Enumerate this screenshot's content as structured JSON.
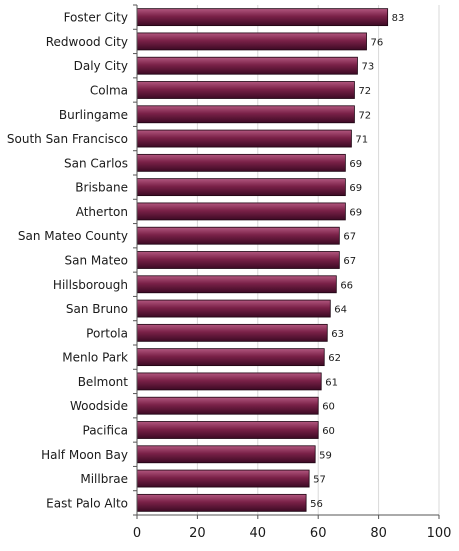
{
  "chart_data": {
    "type": "bar",
    "orientation": "horizontal",
    "categories": [
      "Foster City",
      "Redwood City",
      "Daly City",
      "Colma",
      "Burlingame",
      "South San Francisco",
      "San Carlos",
      "Brisbane",
      "Atherton",
      "San Mateo County",
      "San Mateo",
      "Hillsborough",
      "San Bruno",
      "Portola",
      "Menlo Park",
      "Belmont",
      "Woodside",
      "Pacifica",
      "Half Moon Bay",
      "Millbrae",
      "East Palo Alto"
    ],
    "values": [
      83,
      76,
      73,
      72,
      72,
      71,
      69,
      69,
      69,
      67,
      67,
      66,
      64,
      63,
      62,
      61,
      60,
      60,
      59,
      57,
      56
    ],
    "data_labels": [
      "83",
      "76",
      "73",
      "72",
      "72",
      "71",
      "69",
      "69",
      "69",
      "67",
      "67",
      "66",
      "64",
      "63",
      "62",
      "61",
      "60",
      "60",
      "59",
      "57",
      "56"
    ],
    "title": "",
    "xlabel": "",
    "ylabel": "",
    "xlim": [
      0,
      100
    ],
    "x_ticks": [
      0,
      20,
      40,
      60,
      80,
      100
    ],
    "x_tick_labels": [
      "0",
      "20",
      "40",
      "60",
      "80",
      "100"
    ],
    "grid": true,
    "legend": "none",
    "colors": {
      "bar_top": "#b2577f",
      "bar_mid": "#7a2148",
      "bar_bottom": "#3c0a24",
      "bar_edge": "#1e0412",
      "grid": "#d9d9d9",
      "axis": "#555555"
    }
  }
}
